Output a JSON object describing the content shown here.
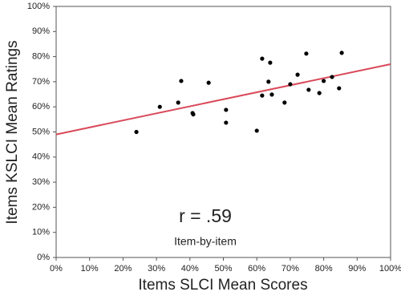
{
  "chart_data": {
    "type": "scatter",
    "x_label": "Items SLCI Mean Scores",
    "y_label": "Items KSLCI Mean Ratings",
    "annotations": [
      "r = .59",
      "Item-by-item"
    ],
    "xlim": [
      0,
      100
    ],
    "ylim": [
      0,
      100
    ],
    "xticks": [
      {
        "value": 0,
        "label": "0%"
      },
      {
        "value": 10,
        "label": "10%"
      },
      {
        "value": 20,
        "label": "20%"
      },
      {
        "value": 30,
        "label": "30%"
      },
      {
        "value": 40,
        "label": "40%"
      },
      {
        "value": 50,
        "label": "50%"
      },
      {
        "value": 60,
        "label": "60%"
      },
      {
        "value": 70,
        "label": "70%"
      },
      {
        "value": 80,
        "label": "80%"
      },
      {
        "value": 90,
        "label": "90%"
      },
      {
        "value": 100,
        "label": "100%"
      }
    ],
    "yticks": [
      {
        "value": 0,
        "label": "0%"
      },
      {
        "value": 10,
        "label": "10%"
      },
      {
        "value": 20,
        "label": "20%"
      },
      {
        "value": 30,
        "label": "30%"
      },
      {
        "value": 40,
        "label": "40%"
      },
      {
        "value": 50,
        "label": "50%"
      },
      {
        "value": 60,
        "label": "60%"
      },
      {
        "value": 70,
        "label": "70%"
      },
      {
        "value": 80,
        "label": "80%"
      },
      {
        "value": 90,
        "label": "90%"
      },
      {
        "value": 100,
        "label": "100%"
      }
    ],
    "grid": false,
    "color": "#000000",
    "x": [
      24,
      31,
      36.5,
      37.4,
      40.8,
      41,
      45.6,
      50.8,
      50.8,
      60,
      61.6,
      61.6,
      63.5,
      64,
      64.5,
      68.3,
      70,
      72.2,
      74.8,
      75.5,
      78.7,
      80,
      82.5,
      84.6,
      85.4
    ],
    "values": [
      50,
      60,
      61.7,
      70.3,
      57.5,
      57,
      69.6,
      58.8,
      53.7,
      50.5,
      79.2,
      64.5,
      70,
      77.6,
      64.9,
      61.7,
      69,
      72.8,
      81.2,
      66.8,
      65.5,
      70.3,
      71.9,
      67.4,
      81.5
    ],
    "trendline": {
      "x": [
        0,
        100
      ],
      "y": [
        49,
        77
      ],
      "color": "#d94a5a"
    }
  }
}
